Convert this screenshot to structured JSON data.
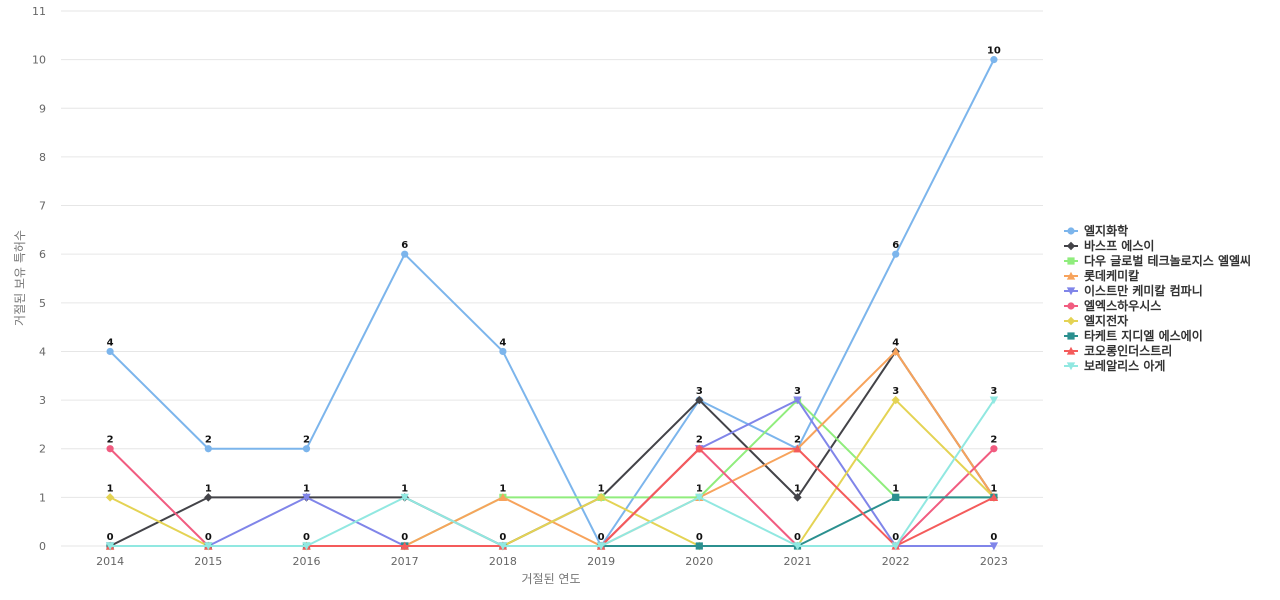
{
  "chart_data": {
    "type": "line",
    "title": "",
    "xlabel": "거절된 연도",
    "ylabel": "거절된 보유 특허수",
    "ylim": [
      0,
      11
    ],
    "yticks": [
      0,
      1,
      2,
      3,
      4,
      5,
      6,
      7,
      8,
      9,
      10,
      11
    ],
    "grid": true,
    "legend_position": "right",
    "categories": [
      "2014",
      "2015",
      "2016",
      "2017",
      "2018",
      "2019",
      "2020",
      "2021",
      "2022",
      "2023"
    ],
    "series": [
      {
        "name": "엘지화학",
        "values": [
          4,
          2,
          2,
          6,
          4,
          0,
          3,
          2,
          6,
          10
        ],
        "color": "#7cb5ec",
        "marker": "circle"
      },
      {
        "name": "바스프 에스이",
        "values": [
          0,
          1,
          1,
          1,
          0,
          1,
          3,
          1,
          4,
          1
        ],
        "color": "#434348",
        "marker": "diamond"
      },
      {
        "name": "다우 글로벌 테크놀로지스 엘엘씨",
        "values": [
          0,
          0,
          0,
          0,
          1,
          1,
          1,
          3,
          1,
          1
        ],
        "color": "#90ed7d",
        "marker": "square"
      },
      {
        "name": "롯데케미칼",
        "values": [
          0,
          0,
          0,
          0,
          1,
          0,
          1,
          2,
          4,
          1
        ],
        "color": "#f7a35c",
        "marker": "triangle"
      },
      {
        "name": "이스트만 케미칼 컴파니",
        "values": [
          0,
          0,
          1,
          0,
          0,
          0,
          2,
          3,
          0,
          0
        ],
        "color": "#8085e9",
        "marker": "triangle-down"
      },
      {
        "name": "엘엑스하우시스",
        "values": [
          2,
          0,
          0,
          0,
          0,
          0,
          2,
          0,
          0,
          2
        ],
        "color": "#f15c80",
        "marker": "circle"
      },
      {
        "name": "엘지전자",
        "values": [
          1,
          0,
          0,
          0,
          0,
          1,
          0,
          0,
          3,
          1
        ],
        "color": "#e4d354",
        "marker": "diamond"
      },
      {
        "name": "타케트 지디엘 에스에이",
        "values": [
          0,
          0,
          0,
          0,
          0,
          0,
          0,
          0,
          1,
          1
        ],
        "color": "#2b908f",
        "marker": "square"
      },
      {
        "name": "코오롱인더스트리",
        "values": [
          0,
          0,
          0,
          0,
          0,
          0,
          2,
          2,
          0,
          1
        ],
        "color": "#f45b5b",
        "marker": "triangle"
      },
      {
        "name": "보레알리스 아게",
        "values": [
          0,
          0,
          0,
          1,
          0,
          0,
          1,
          0,
          0,
          3
        ],
        "color": "#91e8e1",
        "marker": "triangle-down"
      }
    ],
    "data_labels": [
      {
        "x": "2014",
        "y": 4,
        "text": "4"
      },
      {
        "x": "2014",
        "y": 2,
        "text": "2"
      },
      {
        "x": "2014",
        "y": 1,
        "text": "1"
      },
      {
        "x": "2014",
        "y": 0,
        "text": "0"
      },
      {
        "x": "2015",
        "y": 2,
        "text": "2"
      },
      {
        "x": "2015",
        "y": 1,
        "text": "1"
      },
      {
        "x": "2015",
        "y": 0,
        "text": "0"
      },
      {
        "x": "2016",
        "y": 2,
        "text": "2"
      },
      {
        "x": "2016",
        "y": 1,
        "text": "1"
      },
      {
        "x": "2016",
        "y": 0,
        "text": "0"
      },
      {
        "x": "2017",
        "y": 6,
        "text": "6"
      },
      {
        "x": "2017",
        "y": 1,
        "text": "1"
      },
      {
        "x": "2017",
        "y": 0,
        "text": "0"
      },
      {
        "x": "2018",
        "y": 4,
        "text": "4"
      },
      {
        "x": "2018",
        "y": 1,
        "text": "1"
      },
      {
        "x": "2018",
        "y": 0,
        "text": "0"
      },
      {
        "x": "2019",
        "y": 1,
        "text": "1"
      },
      {
        "x": "2019",
        "y": 0,
        "text": "0"
      },
      {
        "x": "2020",
        "y": 3,
        "text": "3"
      },
      {
        "x": "2020",
        "y": 2,
        "text": "2"
      },
      {
        "x": "2020",
        "y": 1,
        "text": "1"
      },
      {
        "x": "2020",
        "y": 0,
        "text": "0"
      },
      {
        "x": "2021",
        "y": 3,
        "text": "3"
      },
      {
        "x": "2021",
        "y": 2,
        "text": "2"
      },
      {
        "x": "2021",
        "y": 1,
        "text": "1"
      },
      {
        "x": "2021",
        "y": 0,
        "text": "0"
      },
      {
        "x": "2022",
        "y": 6,
        "text": "6"
      },
      {
        "x": "2022",
        "y": 4,
        "text": "4"
      },
      {
        "x": "2022",
        "y": 3,
        "text": "3"
      },
      {
        "x": "2022",
        "y": 1,
        "text": "1"
      },
      {
        "x": "2022",
        "y": 0,
        "text": "0"
      },
      {
        "x": "2023",
        "y": 10,
        "text": "10"
      },
      {
        "x": "2023",
        "y": 3,
        "text": "3"
      },
      {
        "x": "2023",
        "y": 2,
        "text": "2"
      },
      {
        "x": "2023",
        "y": 1,
        "text": "1"
      },
      {
        "x": "2023",
        "y": 0,
        "text": "0"
      }
    ]
  }
}
